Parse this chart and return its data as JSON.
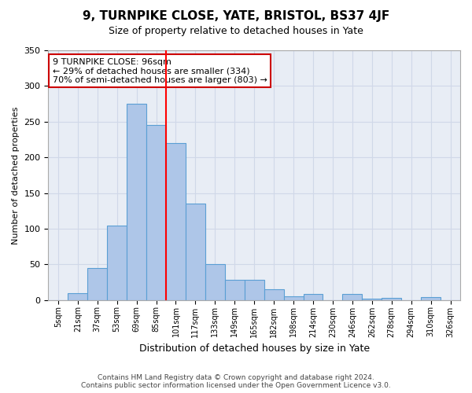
{
  "title": "9, TURNPIKE CLOSE, YATE, BRISTOL, BS37 4JF",
  "subtitle": "Size of property relative to detached houses in Yate",
  "xlabel": "Distribution of detached houses by size in Yate",
  "ylabel": "Number of detached properties",
  "footer_line1": "Contains HM Land Registry data © Crown copyright and database right 2024.",
  "footer_line2": "Contains public sector information licensed under the Open Government Licence v3.0.",
  "bin_labels": [
    "5sqm",
    "21sqm",
    "37sqm",
    "53sqm",
    "69sqm",
    "85sqm",
    "101sqm",
    "117sqm",
    "133sqm",
    "149sqm",
    "165sqm",
    "182sqm",
    "198sqm",
    "214sqm",
    "230sqm",
    "246sqm",
    "262sqm",
    "278sqm",
    "294sqm",
    "310sqm",
    "326sqm"
  ],
  "bar_values": [
    0,
    9,
    45,
    104,
    275,
    245,
    220,
    135,
    50,
    28,
    28,
    15,
    5,
    8,
    0,
    8,
    2,
    3,
    0,
    4,
    0
  ],
  "bar_color": "#aec6e8",
  "bar_edge_color": "#5a9fd4",
  "grid_color": "#d0d8e8",
  "background_color": "#e8edf5",
  "red_line_x": 5.5,
  "annotation_text": "9 TURNPIKE CLOSE: 96sqm\n← 29% of detached houses are smaller (334)\n70% of semi-detached houses are larger (803) →",
  "annotation_box_color": "#ffffff",
  "annotation_box_edge_color": "#cc0000",
  "ylim": [
    0,
    350
  ],
  "yticks": [
    0,
    50,
    100,
    150,
    200,
    250,
    300,
    350
  ]
}
